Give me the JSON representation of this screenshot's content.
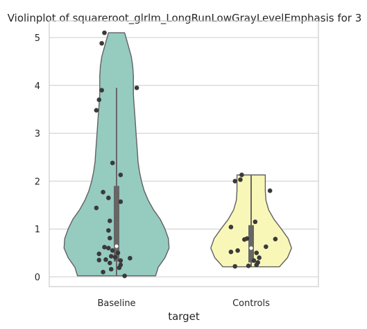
{
  "chart_data": {
    "type": "violin",
    "title": "Violinplot of squareroot_glrlm_LongRunLowGrayLevelEmphasis for 3",
    "xlabel": "target",
    "ylabel": "",
    "categories": [
      "Baseline",
      "Controls"
    ],
    "ylim": [
      -0.2,
      5.35
    ],
    "yticks": [
      0,
      1,
      2,
      3,
      4,
      5
    ],
    "grid": true,
    "colors": {
      "Baseline": "#96cbc0",
      "Controls": "#f9f7b8"
    },
    "violins": [
      {
        "category": "Baseline",
        "profile": [
          [
            0.02,
            0.58
          ],
          [
            0.2,
            0.62
          ],
          [
            0.4,
            0.72
          ],
          [
            0.6,
            0.78
          ],
          [
            0.8,
            0.77
          ],
          [
            1.0,
            0.72
          ],
          [
            1.2,
            0.65
          ],
          [
            1.4,
            0.55
          ],
          [
            1.6,
            0.47
          ],
          [
            1.8,
            0.41
          ],
          [
            2.0,
            0.37
          ],
          [
            2.2,
            0.34
          ],
          [
            2.4,
            0.32
          ],
          [
            2.6,
            0.31
          ],
          [
            2.8,
            0.3
          ],
          [
            3.0,
            0.29
          ],
          [
            3.2,
            0.28
          ],
          [
            3.4,
            0.27
          ],
          [
            3.6,
            0.26
          ],
          [
            3.8,
            0.25
          ],
          [
            4.0,
            0.25
          ],
          [
            4.2,
            0.25
          ],
          [
            4.4,
            0.24
          ],
          [
            4.6,
            0.22
          ],
          [
            4.8,
            0.18
          ],
          [
            5.0,
            0.14
          ],
          [
            5.1,
            0.12
          ]
        ],
        "quartiles": {
          "q1": 0.32,
          "median": 0.64,
          "q3": 1.9,
          "whisker_low": 0.02,
          "whisker_high": 3.95
        },
        "points": [
          [
            -0.09,
            5.1
          ],
          [
            -0.11,
            4.88
          ],
          [
            -0.11,
            3.9
          ],
          [
            -0.13,
            3.7
          ],
          [
            -0.15,
            3.48
          ],
          [
            0.15,
            3.95
          ],
          [
            -0.03,
            2.38
          ],
          [
            0.03,
            2.13
          ],
          [
            -0.1,
            1.77
          ],
          [
            -0.06,
            1.65
          ],
          [
            0.03,
            1.57
          ],
          [
            -0.15,
            1.44
          ],
          [
            -0.05,
            1.17
          ],
          [
            -0.06,
            0.97
          ],
          [
            -0.05,
            0.81
          ],
          [
            -0.09,
            0.62
          ],
          [
            -0.06,
            0.6
          ],
          [
            -0.03,
            0.55
          ],
          [
            0.01,
            0.5
          ],
          [
            -0.13,
            0.48
          ],
          [
            -0.04,
            0.43
          ],
          [
            -0.01,
            0.41
          ],
          [
            0.1,
            0.39
          ],
          [
            -0.08,
            0.36
          ],
          [
            -0.13,
            0.35
          ],
          [
            0.03,
            0.34
          ],
          [
            -0.05,
            0.29
          ],
          [
            0.03,
            0.25
          ],
          [
            0.02,
            0.19
          ],
          [
            -0.04,
            0.16
          ],
          [
            -0.1,
            0.1
          ],
          [
            0.06,
            0.02
          ]
        ]
      },
      {
        "category": "Controls",
        "profile": [
          [
            0.21,
            0.42
          ],
          [
            0.4,
            0.54
          ],
          [
            0.6,
            0.6
          ],
          [
            0.8,
            0.55
          ],
          [
            1.0,
            0.45
          ],
          [
            1.2,
            0.34
          ],
          [
            1.4,
            0.26
          ],
          [
            1.6,
            0.22
          ],
          [
            1.8,
            0.21
          ],
          [
            2.0,
            0.21
          ],
          [
            2.13,
            0.21
          ]
        ],
        "quartiles": {
          "q1": 0.3,
          "median": 0.6,
          "q3": 1.08,
          "whisker_low": 0.21,
          "whisker_high": 2.13
        },
        "points": [
          [
            -0.07,
            2.13
          ],
          [
            -0.08,
            2.03
          ],
          [
            -0.12,
            2.0
          ],
          [
            0.14,
            1.8
          ],
          [
            0.03,
            1.15
          ],
          [
            -0.15,
            1.04
          ],
          [
            0.18,
            0.79
          ],
          [
            -0.03,
            0.8
          ],
          [
            -0.05,
            0.78
          ],
          [
            0.11,
            0.63
          ],
          [
            -0.1,
            0.55
          ],
          [
            -0.15,
            0.52
          ],
          [
            0.04,
            0.5
          ],
          [
            0.06,
            0.4
          ],
          [
            0.02,
            0.34
          ],
          [
            0.05,
            0.3
          ],
          [
            0.04,
            0.25
          ],
          [
            -0.12,
            0.22
          ],
          [
            -0.02,
            0.23
          ]
        ]
      }
    ]
  }
}
